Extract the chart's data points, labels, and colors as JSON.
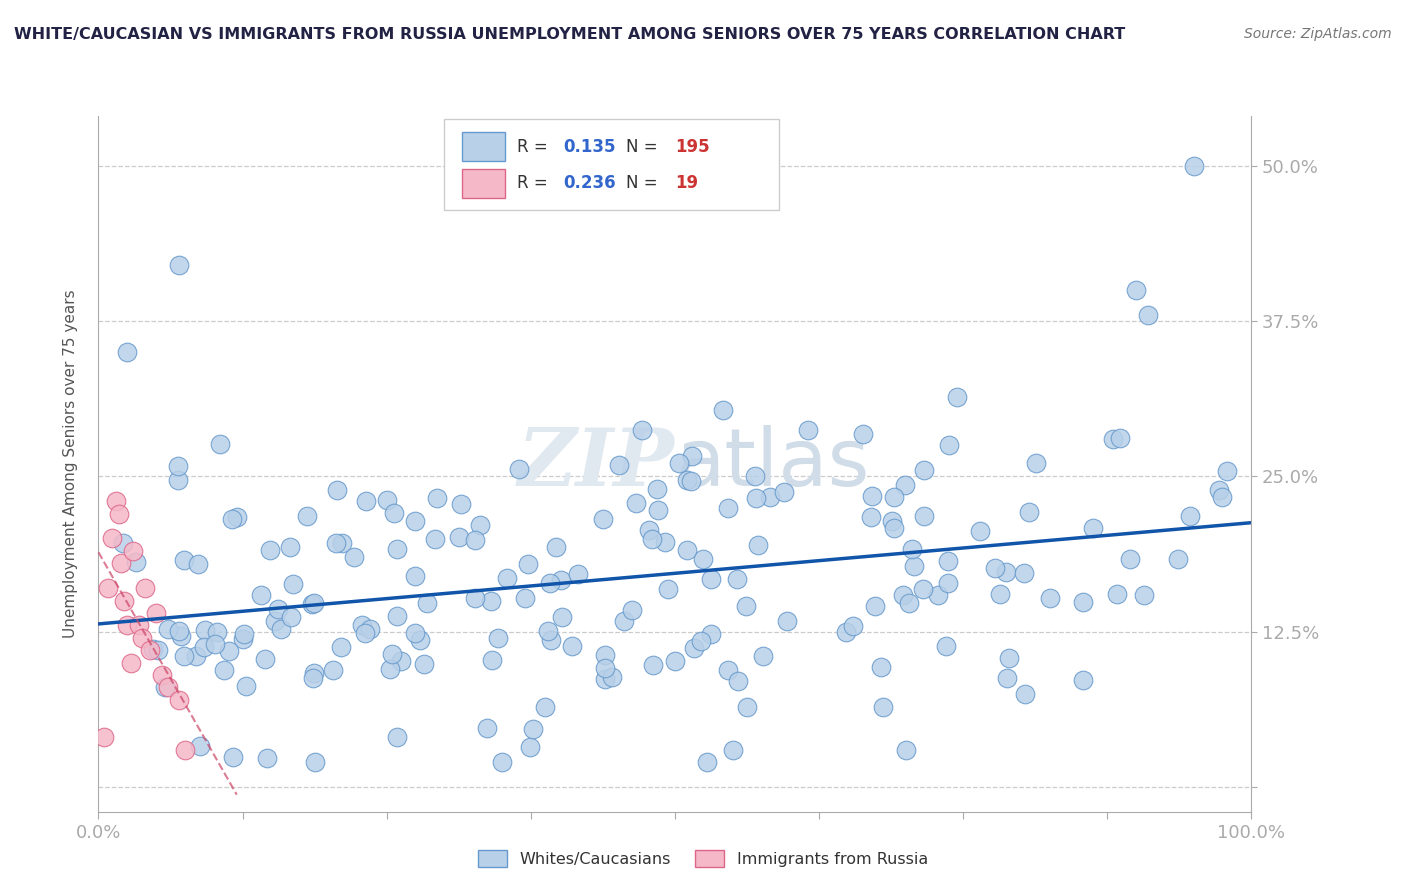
{
  "title": "WHITE/CAUCASIAN VS IMMIGRANTS FROM RUSSIA UNEMPLOYMENT AMONG SENIORS OVER 75 YEARS CORRELATION CHART",
  "source": "Source: ZipAtlas.com",
  "ylabel": "Unemployment Among Seniors over 75 years",
  "xlim": [
    0.0,
    1.0
  ],
  "ylim": [
    -0.02,
    0.54
  ],
  "xticks": [
    0.0,
    0.125,
    0.25,
    0.375,
    0.5,
    0.625,
    0.75,
    0.875,
    1.0
  ],
  "xtick_labels": [
    "0.0%",
    "",
    "",
    "",
    "",
    "",
    "",
    "",
    "100.0%"
  ],
  "ytick_positions": [
    0.0,
    0.125,
    0.25,
    0.375,
    0.5
  ],
  "ytick_labels": [
    "",
    "12.5%",
    "25.0%",
    "37.5%",
    "50.0%"
  ],
  "blue_R": 0.135,
  "blue_N": 195,
  "pink_R": 0.236,
  "pink_N": 19,
  "blue_fill": "#b8d0e8",
  "pink_fill": "#f5b8c8",
  "blue_edge": "#6699cc",
  "pink_edge": "#dd6688",
  "blue_line_color": "#1155aa",
  "pink_line_color": "#cc4466",
  "grid_color": "#cccccc",
  "title_color": "#222244",
  "watermark_zip": "ZIP",
  "watermark_atlas": "atlas",
  "legend_box_color": "#eeeeee"
}
